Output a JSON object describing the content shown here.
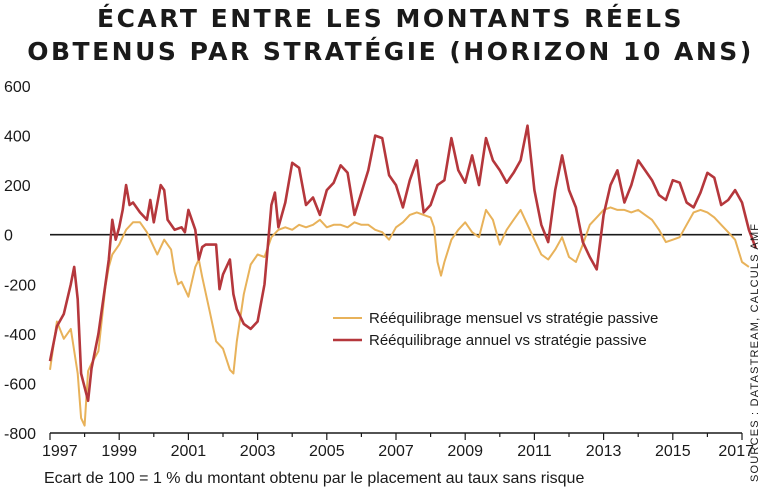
{
  "title_line1": "ÉCART ENTRE LES MONTANTS RÉELS",
  "title_line2": "OBTENUS PAR STRATÉGIE (HORIZON 10 ANS)",
  "source": "SOURCES : DATASTREAM, CALCULS AMF",
  "footnote": "Ecart de 100 = 1 % du montant obtenu par le placement au taux sans risque",
  "colors": {
    "annual": "#b5373c",
    "monthly": "#e8b25a",
    "axis": "#1a1a1a"
  },
  "chart_data": {
    "type": "line",
    "xlim": [
      1997,
      2017
    ],
    "ylim": [
      -800,
      600
    ],
    "x_ticks": [
      "1997",
      "1999",
      "2001",
      "2003",
      "2005",
      "2007",
      "2009",
      "2011",
      "2013",
      "2015",
      "2017"
    ],
    "y_ticks": [
      "600",
      "400",
      "200",
      "0",
      "-200",
      "-400",
      "-600",
      "-800"
    ],
    "legend_position": "lower-right",
    "series": [
      {
        "name": "Rééquilibrage mensuel vs stratégie passive",
        "key": "monthly",
        "points": [
          [
            1997.0,
            -545
          ],
          [
            1997.2,
            -350
          ],
          [
            1997.4,
            -420
          ],
          [
            1997.6,
            -380
          ],
          [
            1997.8,
            -560
          ],
          [
            1997.9,
            -740
          ],
          [
            1998.0,
            -770
          ],
          [
            1998.1,
            -550
          ],
          [
            1998.2,
            -520
          ],
          [
            1998.4,
            -470
          ],
          [
            1998.6,
            -210
          ],
          [
            1998.7,
            -130
          ],
          [
            1998.8,
            -80
          ],
          [
            1999.0,
            -40
          ],
          [
            1999.2,
            20
          ],
          [
            1999.4,
            50
          ],
          [
            1999.6,
            50
          ],
          [
            1999.8,
            10
          ],
          [
            2000.0,
            -50
          ],
          [
            2000.1,
            -80
          ],
          [
            2000.3,
            -20
          ],
          [
            2000.5,
            -60
          ],
          [
            2000.6,
            -150
          ],
          [
            2000.7,
            -200
          ],
          [
            2000.8,
            -190
          ],
          [
            2001.0,
            -250
          ],
          [
            2001.2,
            -130
          ],
          [
            2001.3,
            -100
          ],
          [
            2001.4,
            -170
          ],
          [
            2001.6,
            -300
          ],
          [
            2001.8,
            -430
          ],
          [
            2002.0,
            -460
          ],
          [
            2002.2,
            -545
          ],
          [
            2002.3,
            -560
          ],
          [
            2002.4,
            -430
          ],
          [
            2002.6,
            -240
          ],
          [
            2002.8,
            -120
          ],
          [
            2003.0,
            -80
          ],
          [
            2003.2,
            -90
          ],
          [
            2003.4,
            -10
          ],
          [
            2003.6,
            20
          ],
          [
            2003.8,
            30
          ],
          [
            2004.0,
            20
          ],
          [
            2004.2,
            40
          ],
          [
            2004.4,
            30
          ],
          [
            2004.6,
            40
          ],
          [
            2004.8,
            60
          ],
          [
            2005.0,
            30
          ],
          [
            2005.2,
            40
          ],
          [
            2005.4,
            40
          ],
          [
            2005.6,
            30
          ],
          [
            2005.8,
            50
          ],
          [
            2006.0,
            40
          ],
          [
            2006.2,
            40
          ],
          [
            2006.4,
            20
          ],
          [
            2006.6,
            10
          ],
          [
            2006.8,
            -20
          ],
          [
            2007.0,
            30
          ],
          [
            2007.2,
            50
          ],
          [
            2007.4,
            80
          ],
          [
            2007.6,
            90
          ],
          [
            2007.8,
            80
          ],
          [
            2008.0,
            70
          ],
          [
            2008.1,
            30
          ],
          [
            2008.2,
            -110
          ],
          [
            2008.3,
            -165
          ],
          [
            2008.4,
            -110
          ],
          [
            2008.6,
            -20
          ],
          [
            2008.8,
            20
          ],
          [
            2009.0,
            50
          ],
          [
            2009.2,
            10
          ],
          [
            2009.4,
            -10
          ],
          [
            2009.6,
            100
          ],
          [
            2009.8,
            60
          ],
          [
            2010.0,
            -40
          ],
          [
            2010.2,
            20
          ],
          [
            2010.4,
            60
          ],
          [
            2010.6,
            100
          ],
          [
            2010.8,
            40
          ],
          [
            2011.0,
            -20
          ],
          [
            2011.2,
            -80
          ],
          [
            2011.4,
            -100
          ],
          [
            2011.6,
            -60
          ],
          [
            2011.8,
            -10
          ],
          [
            2012.0,
            -90
          ],
          [
            2012.2,
            -110
          ],
          [
            2012.4,
            -40
          ],
          [
            2012.6,
            40
          ],
          [
            2012.8,
            70
          ],
          [
            2013.0,
            100
          ],
          [
            2013.2,
            110
          ],
          [
            2013.4,
            100
          ],
          [
            2013.6,
            100
          ],
          [
            2013.8,
            90
          ],
          [
            2014.0,
            100
          ],
          [
            2014.2,
            80
          ],
          [
            2014.4,
            60
          ],
          [
            2014.6,
            20
          ],
          [
            2014.8,
            -30
          ],
          [
            2015.0,
            -20
          ],
          [
            2015.2,
            -10
          ],
          [
            2015.4,
            40
          ],
          [
            2015.6,
            90
          ],
          [
            2015.8,
            100
          ],
          [
            2016.0,
            90
          ],
          [
            2016.2,
            70
          ],
          [
            2016.4,
            40
          ],
          [
            2016.6,
            10
          ],
          [
            2016.8,
            -20
          ],
          [
            2017.0,
            -110
          ],
          [
            2017.2,
            -130
          ]
        ]
      },
      {
        "name": "Rééquilibrage annuel vs stratégie passive",
        "key": "annual",
        "points": [
          [
            1997.0,
            -510
          ],
          [
            1997.2,
            -370
          ],
          [
            1997.4,
            -320
          ],
          [
            1997.6,
            -200
          ],
          [
            1997.7,
            -130
          ],
          [
            1997.8,
            -260
          ],
          [
            1997.9,
            -560
          ],
          [
            1998.1,
            -670
          ],
          [
            1998.2,
            -540
          ],
          [
            1998.4,
            -400
          ],
          [
            1998.6,
            -200
          ],
          [
            1998.7,
            -100
          ],
          [
            1998.8,
            60
          ],
          [
            1998.9,
            -20
          ],
          [
            1999.0,
            30
          ],
          [
            1999.1,
            100
          ],
          [
            1999.2,
            200
          ],
          [
            1999.3,
            120
          ],
          [
            1999.4,
            130
          ],
          [
            1999.6,
            90
          ],
          [
            1999.8,
            60
          ],
          [
            1999.9,
            140
          ],
          [
            2000.0,
            50
          ],
          [
            2000.2,
            200
          ],
          [
            2000.3,
            180
          ],
          [
            2000.4,
            60
          ],
          [
            2000.6,
            20
          ],
          [
            2000.8,
            30
          ],
          [
            2000.9,
            10
          ],
          [
            2001.0,
            100
          ],
          [
            2001.2,
            20
          ],
          [
            2001.3,
            -100
          ],
          [
            2001.4,
            -50
          ],
          [
            2001.5,
            -40
          ],
          [
            2001.6,
            -40
          ],
          [
            2001.8,
            -40
          ],
          [
            2001.9,
            -220
          ],
          [
            2002.0,
            -160
          ],
          [
            2002.2,
            -100
          ],
          [
            2002.3,
            -240
          ],
          [
            2002.4,
            -300
          ],
          [
            2002.6,
            -360
          ],
          [
            2002.8,
            -380
          ],
          [
            2003.0,
            -350
          ],
          [
            2003.2,
            -200
          ],
          [
            2003.4,
            120
          ],
          [
            2003.5,
            170
          ],
          [
            2003.6,
            30
          ],
          [
            2003.8,
            130
          ],
          [
            2004.0,
            290
          ],
          [
            2004.2,
            270
          ],
          [
            2004.4,
            120
          ],
          [
            2004.6,
            150
          ],
          [
            2004.8,
            80
          ],
          [
            2005.0,
            180
          ],
          [
            2005.2,
            210
          ],
          [
            2005.4,
            280
          ],
          [
            2005.6,
            250
          ],
          [
            2005.8,
            80
          ],
          [
            2006.0,
            170
          ],
          [
            2006.2,
            260
          ],
          [
            2006.4,
            400
          ],
          [
            2006.6,
            390
          ],
          [
            2006.8,
            240
          ],
          [
            2007.0,
            200
          ],
          [
            2007.2,
            110
          ],
          [
            2007.4,
            220
          ],
          [
            2007.6,
            300
          ],
          [
            2007.8,
            90
          ],
          [
            2008.0,
            120
          ],
          [
            2008.2,
            200
          ],
          [
            2008.4,
            220
          ],
          [
            2008.6,
            390
          ],
          [
            2008.8,
            260
          ],
          [
            2009.0,
            210
          ],
          [
            2009.2,
            320
          ],
          [
            2009.4,
            200
          ],
          [
            2009.6,
            390
          ],
          [
            2009.8,
            300
          ],
          [
            2010.0,
            260
          ],
          [
            2010.2,
            210
          ],
          [
            2010.4,
            250
          ],
          [
            2010.6,
            300
          ],
          [
            2010.8,
            440
          ],
          [
            2011.0,
            180
          ],
          [
            2011.2,
            40
          ],
          [
            2011.4,
            -30
          ],
          [
            2011.6,
            180
          ],
          [
            2011.8,
            320
          ],
          [
            2012.0,
            180
          ],
          [
            2012.2,
            110
          ],
          [
            2012.4,
            -30
          ],
          [
            2012.6,
            -90
          ],
          [
            2012.8,
            -140
          ],
          [
            2013.0,
            80
          ],
          [
            2013.2,
            200
          ],
          [
            2013.4,
            260
          ],
          [
            2013.6,
            130
          ],
          [
            2013.8,
            200
          ],
          [
            2014.0,
            300
          ],
          [
            2014.2,
            260
          ],
          [
            2014.4,
            220
          ],
          [
            2014.6,
            160
          ],
          [
            2014.8,
            140
          ],
          [
            2015.0,
            220
          ],
          [
            2015.2,
            210
          ],
          [
            2015.4,
            130
          ],
          [
            2015.6,
            110
          ],
          [
            2015.8,
            170
          ],
          [
            2016.0,
            250
          ],
          [
            2016.2,
            230
          ],
          [
            2016.4,
            120
          ],
          [
            2016.6,
            140
          ],
          [
            2016.8,
            180
          ],
          [
            2017.0,
            130
          ],
          [
            2017.2,
            20
          ],
          [
            2017.4,
            -55
          ]
        ]
      }
    ]
  }
}
